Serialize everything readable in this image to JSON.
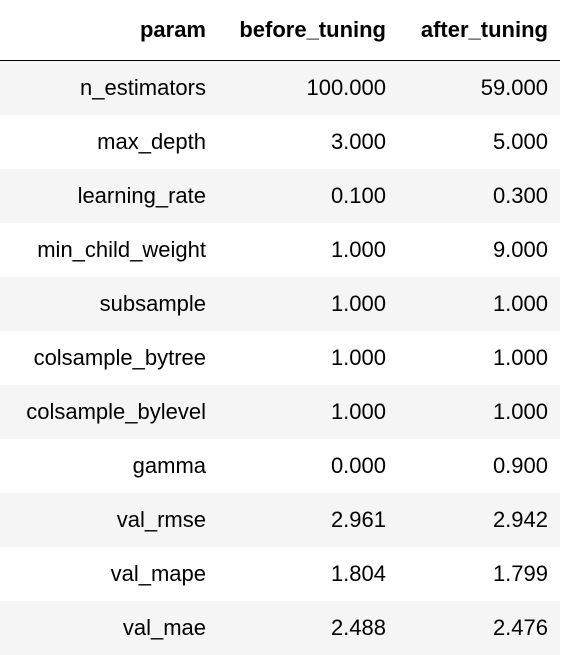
{
  "table": {
    "columns": [
      "param",
      "before_tuning",
      "after_tuning"
    ],
    "rows": [
      [
        "n_estimators",
        "100.000",
        "59.000"
      ],
      [
        "max_depth",
        "3.000",
        "5.000"
      ],
      [
        "learning_rate",
        "0.100",
        "0.300"
      ],
      [
        "min_child_weight",
        "1.000",
        "9.000"
      ],
      [
        "subsample",
        "1.000",
        "1.000"
      ],
      [
        "colsample_bytree",
        "1.000",
        "1.000"
      ],
      [
        "colsample_bylevel",
        "1.000",
        "1.000"
      ],
      [
        "gamma",
        "0.000",
        "0.900"
      ],
      [
        "val_rmse",
        "2.961",
        "2.942"
      ],
      [
        "val_mape",
        "1.804",
        "1.799"
      ],
      [
        "val_mae",
        "2.488",
        "2.476"
      ]
    ]
  },
  "colors": {
    "stripe": "#f5f5f5",
    "background": "#ffffff",
    "text": "#000000"
  }
}
